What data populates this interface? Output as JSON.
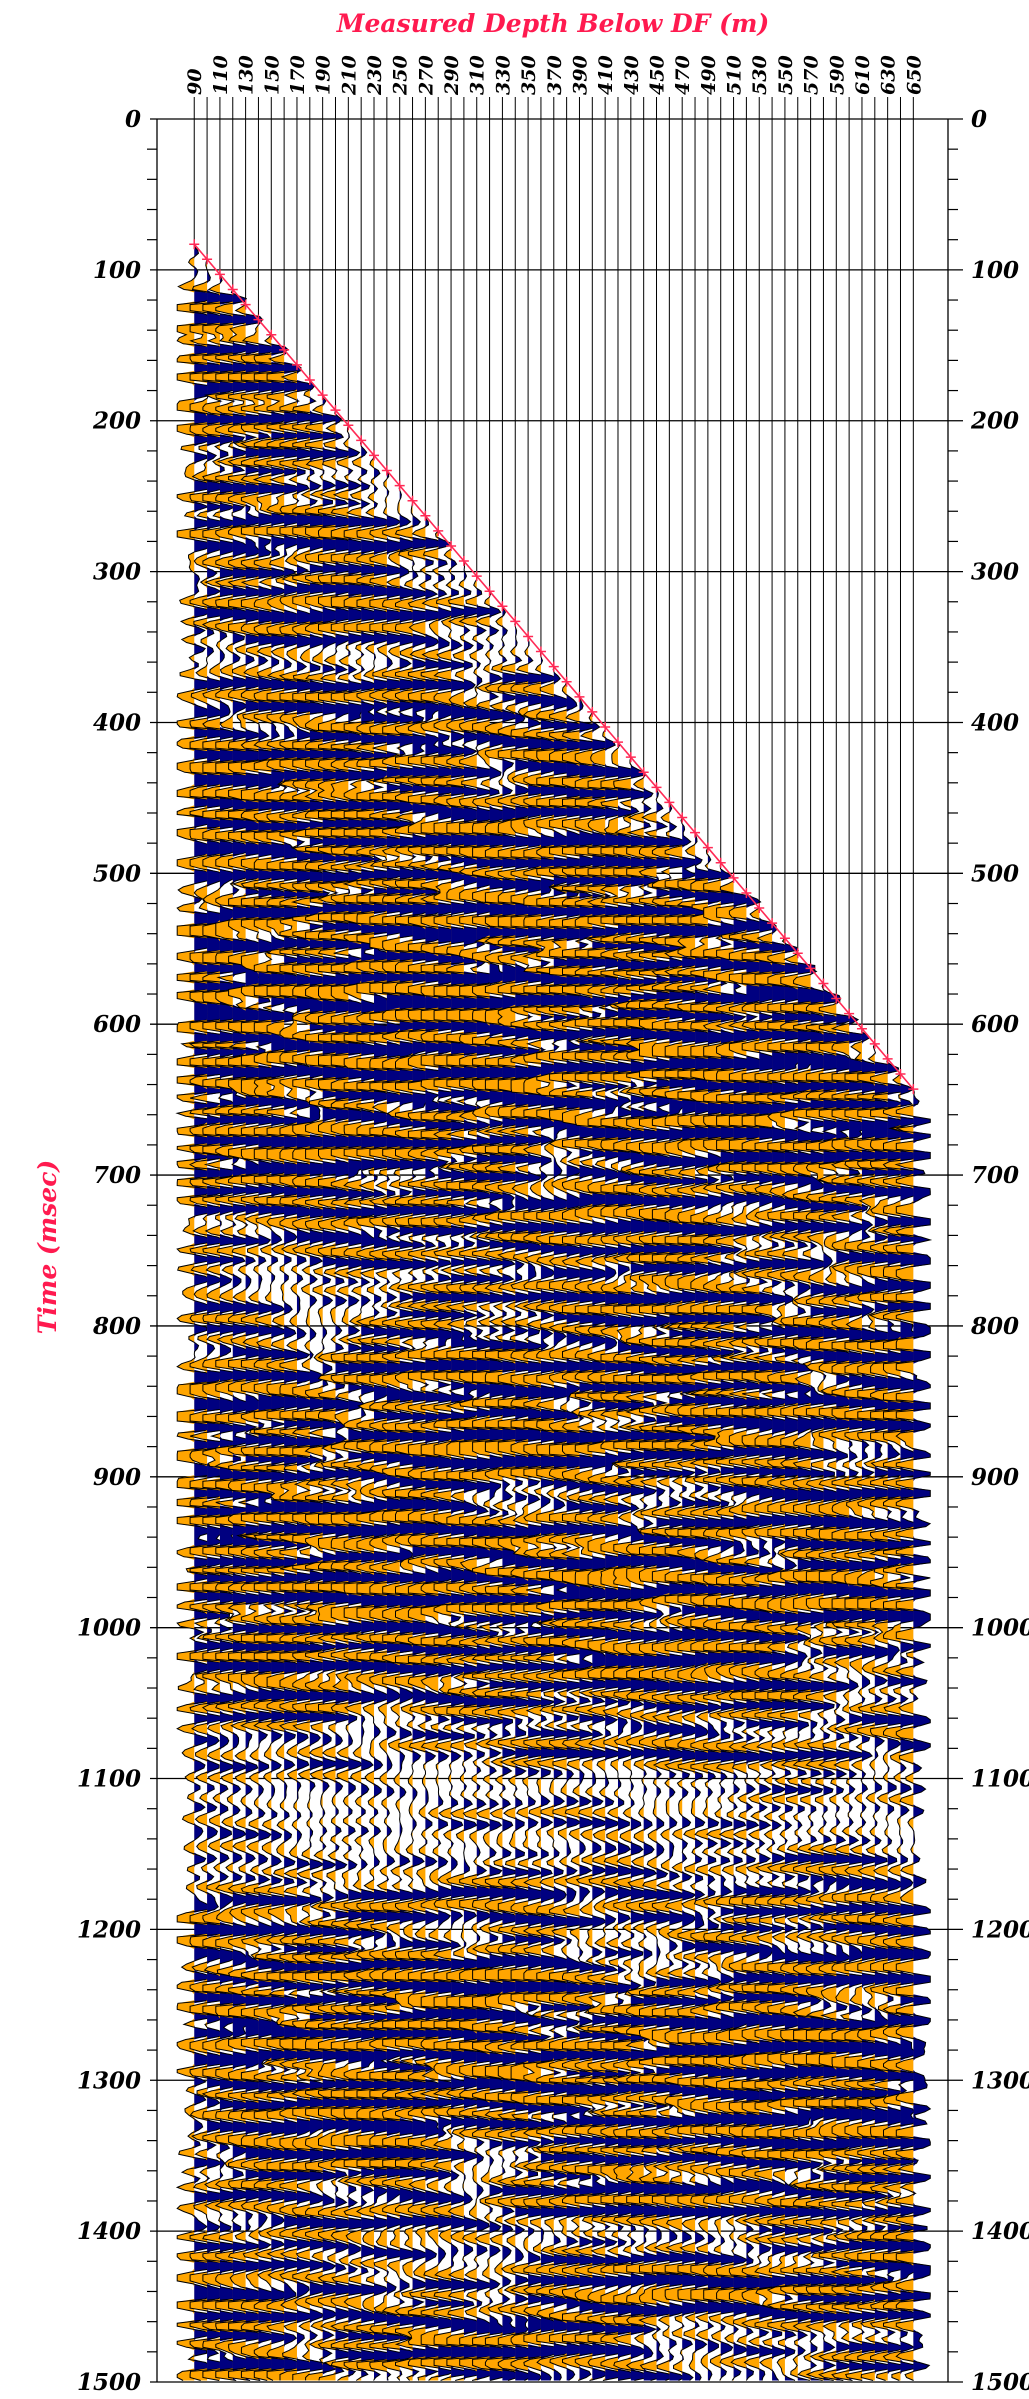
{
  "chart_data": {
    "type": "wiggle",
    "title": "Measured Depth Below DF (m)",
    "y_label": "Time (msec)",
    "x": [
      90,
      100,
      110,
      120,
      130,
      140,
      150,
      160,
      170,
      180,
      190,
      200,
      210,
      220,
      230,
      240,
      250,
      260,
      270,
      280,
      290,
      300,
      310,
      320,
      330,
      340,
      350,
      360,
      370,
      380,
      390,
      400,
      410,
      420,
      430,
      440,
      450,
      460,
      470,
      480,
      490,
      500,
      510,
      520,
      530,
      540,
      550,
      560,
      570,
      580,
      590,
      600,
      610,
      620,
      630,
      640,
      650
    ],
    "xlim": [
      61,
      677
    ],
    "xticks": [
      90,
      110,
      130,
      150,
      170,
      190,
      210,
      230,
      250,
      270,
      290,
      310,
      330,
      350,
      370,
      390,
      410,
      430,
      450,
      470,
      490,
      510,
      530,
      550,
      570,
      590,
      610,
      630,
      650
    ],
    "ylim": [
      0,
      1500
    ],
    "yticks": [
      0,
      100,
      200,
      300,
      400,
      500,
      600,
      700,
      800,
      900,
      1000,
      1100,
      1200,
      1300,
      1400,
      1500
    ],
    "yminorticks": [
      20,
      40,
      60,
      80,
      120,
      140,
      160,
      180,
      220,
      240,
      260,
      280,
      320,
      340,
      360,
      380,
      420,
      440,
      460,
      480,
      520,
      540,
      560,
      580,
      620,
      640,
      660,
      680,
      720,
      740,
      760,
      780,
      820,
      840,
      860,
      880,
      920,
      940,
      960,
      980,
      1020,
      1040,
      1060,
      1080,
      1120,
      1140,
      1160,
      1180,
      1220,
      1240,
      1260,
      1280,
      1320,
      1340,
      1360,
      1380,
      1420,
      1440,
      1460,
      1480
    ],
    "y_inverted": true,
    "positive_color": "#000080",
    "negative_color": "#ffa500",
    "label_color": "#ff1a4f",
    "first_break": {
      "color": "#ff2a55",
      "values": [
        83,
        93,
        103,
        113,
        123,
        133,
        143,
        153,
        163,
        173,
        183,
        193,
        203,
        213,
        223,
        233,
        243,
        253,
        263,
        273,
        283,
        293,
        303,
        313,
        323,
        333,
        343,
        353,
        363,
        373,
        383,
        393,
        403,
        413,
        423,
        433,
        443,
        453,
        463,
        473,
        483,
        493,
        503,
        513,
        523,
        533,
        543,
        553,
        563,
        573,
        583,
        593,
        603,
        613,
        623,
        633,
        643
      ]
    }
  }
}
